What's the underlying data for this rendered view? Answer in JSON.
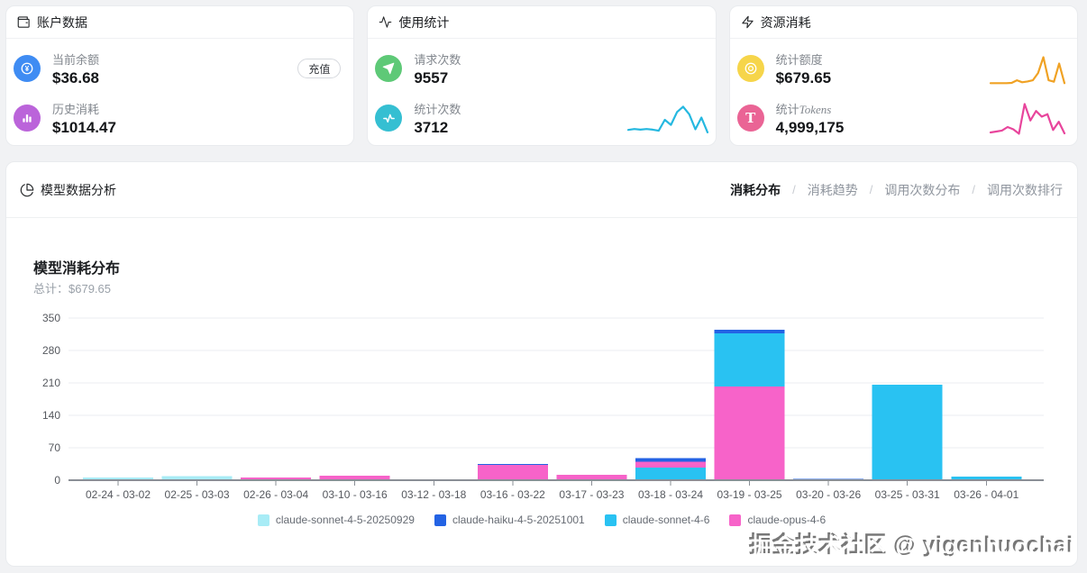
{
  "cards": {
    "account": {
      "title": "账户数据",
      "topup_label": "充值",
      "rows": [
        {
          "label": "当前余额",
          "value": "$36.68",
          "icon": "yen-coin-icon",
          "icon_bg": "#3f8cf3"
        },
        {
          "label": "历史消耗",
          "value": "$1014.47",
          "icon": "bar-chart-icon",
          "icon_bg": "#bb64da"
        }
      ]
    },
    "usage": {
      "title": "使用统计",
      "rows": [
        {
          "label": "请求次数",
          "value": "9557",
          "icon": "send-icon",
          "icon_bg": "#5ec977"
        },
        {
          "label": "统计次数",
          "value": "3712",
          "icon": "pulse-icon",
          "icon_bg": "#35bfd2"
        }
      ],
      "sparkline": {
        "color": "#25b8e0",
        "values": [
          0.14,
          0.17,
          0.15,
          0.17,
          0.15,
          0.11,
          0.5,
          0.32,
          0.78,
          0.97,
          0.7,
          0.16,
          0.58,
          0.05
        ]
      }
    },
    "resource": {
      "title": "资源消耗",
      "rows": [
        {
          "label": "统计额度",
          "value": "$679.65",
          "icon": "coin-ring-icon",
          "icon_bg": "#f6d54a",
          "sparkline": {
            "color": "#f0a224",
            "values": [
              0.1,
              0.1,
              0.1,
              0.1,
              0.11,
              0.2,
              0.13,
              0.16,
              0.2,
              0.45,
              1.0,
              0.2,
              0.15,
              0.78,
              0.1
            ]
          }
        },
        {
          "label_prefix": "统计",
          "label_suffix": "Tokens",
          "value": "4,999,175",
          "icon": "letter-t-icon",
          "icon_bg": "#ea6495",
          "sparkline": {
            "color": "#e8459c",
            "values": [
              0.1,
              0.13,
              0.16,
              0.27,
              0.2,
              0.06,
              1.0,
              0.48,
              0.78,
              0.6,
              0.68,
              0.18,
              0.44,
              0.07
            ]
          }
        }
      ]
    }
  },
  "panel": {
    "title": "模型数据分析",
    "tab_separator": "/",
    "tabs": [
      {
        "label": "消耗分布",
        "active": true
      },
      {
        "label": "消耗趋势",
        "active": false
      },
      {
        "label": "调用次数分布",
        "active": false
      },
      {
        "label": "调用次数排行",
        "active": false
      }
    ]
  },
  "chart_data": {
    "type": "bar",
    "stacked": true,
    "title": "模型消耗分布",
    "total_label": "总计：",
    "total_value": "$679.65",
    "ylim": [
      0,
      350
    ],
    "yticks": [
      0,
      70,
      140,
      210,
      280,
      350
    ],
    "grid": true,
    "legend_position": "bottom",
    "colors": {
      "claude-sonnet-4-5-20250929": "#a8ecf6",
      "claude-haiku-4-5-20251001": "#2363e4",
      "claude-sonnet-4-6": "#29c2f2",
      "claude-opus-4-6": "#f763c9"
    },
    "legend": [
      "claude-sonnet-4-5-20250929",
      "claude-haiku-4-5-20251001",
      "claude-sonnet-4-6",
      "claude-opus-4-6"
    ],
    "categories": [
      "02-24 - 03-02",
      "02-25 - 03-03",
      "02-26 - 03-04",
      "03-10 - 03-16",
      "03-12 - 03-18",
      "03-16 - 03-22",
      "03-17 - 03-23",
      "03-18 - 03-24",
      "03-19 - 03-25",
      "03-20 - 03-26",
      "03-25 - 03-31",
      "03-26 - 04-01"
    ],
    "bars": [
      {
        "category": "02-24 - 03-02",
        "segments": [
          {
            "name": "claude-sonnet-4-5-20250929",
            "value": 6
          }
        ]
      },
      {
        "category": "02-25 - 03-03",
        "segments": [
          {
            "name": "claude-sonnet-4-5-20250929",
            "value": 9
          }
        ]
      },
      {
        "category": "02-26 - 03-04",
        "segments": [
          {
            "name": "claude-opus-4-6",
            "value": 6
          }
        ]
      },
      {
        "category": "03-10 - 03-16",
        "segments": [
          {
            "name": "claude-opus-4-6",
            "value": 10
          }
        ]
      },
      {
        "category": "03-12 - 03-18",
        "segments": [
          {
            "name": "claude-opus-4-6",
            "value": 2
          }
        ]
      },
      {
        "category": "03-16 - 03-22",
        "segments": [
          {
            "name": "claude-opus-4-6",
            "value": 33
          },
          {
            "name": "claude-haiku-4-5-20251001",
            "value": 2
          }
        ]
      },
      {
        "category": "03-17 - 03-23",
        "segments": [
          {
            "name": "claude-opus-4-6",
            "value": 12
          }
        ]
      },
      {
        "category": "03-18 - 03-24",
        "segments": [
          {
            "name": "claude-sonnet-4-6",
            "value": 27
          },
          {
            "name": "claude-opus-4-6",
            "value": 13
          },
          {
            "name": "claude-haiku-4-5-20251001",
            "value": 8
          }
        ]
      },
      {
        "category": "03-19 - 03-25",
        "segments": [
          {
            "name": "claude-opus-4-6",
            "value": 202
          },
          {
            "name": "claude-sonnet-4-6",
            "value": 115
          },
          {
            "name": "claude-haiku-4-5-20251001",
            "value": 8
          }
        ]
      },
      {
        "category": "03-20 - 03-26",
        "segments": [
          {
            "name": "claude-haiku-4-5-20251001",
            "value": 3
          }
        ]
      },
      {
        "category": "03-25 - 03-31",
        "segments": [
          {
            "name": "claude-sonnet-4-6",
            "value": 206
          }
        ]
      },
      {
        "category": "03-26 - 04-01",
        "segments": [
          {
            "name": "claude-sonnet-4-6",
            "value": 8
          }
        ]
      }
    ]
  },
  "watermark": "掘金技术社区 @ yigenhuochai"
}
